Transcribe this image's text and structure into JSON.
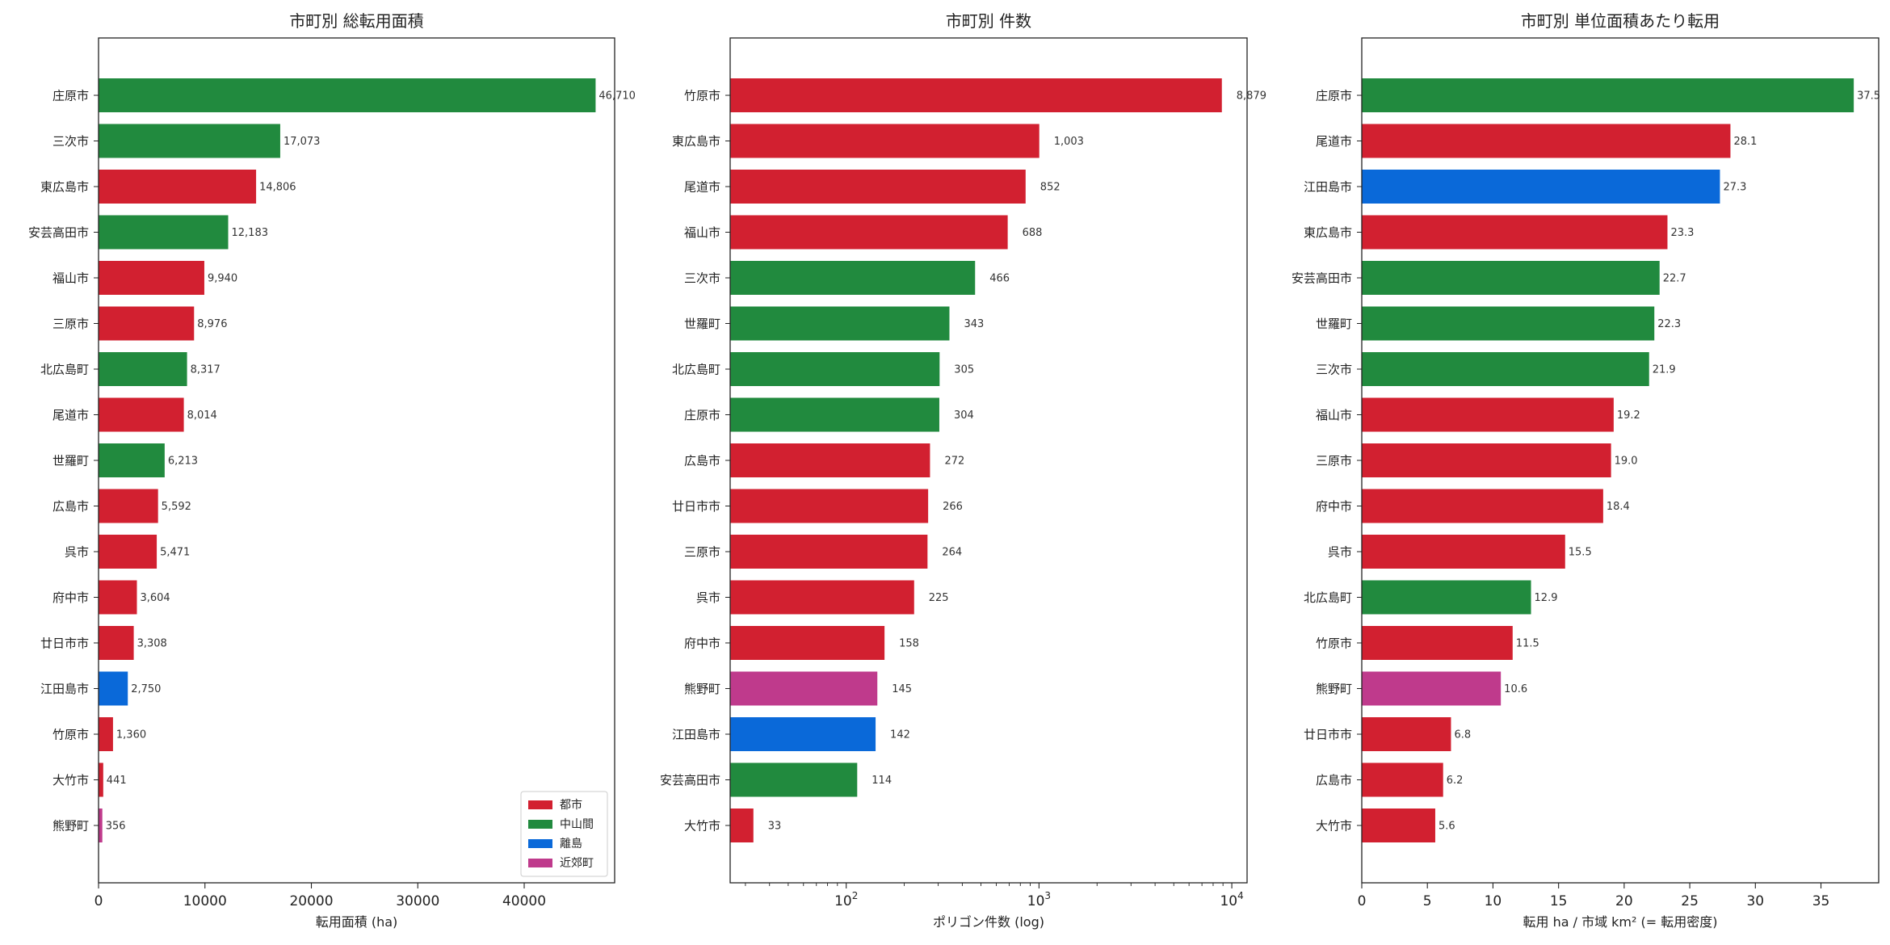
{
  "colors": {
    "都市": "#d22030",
    "中山間": "#218a3e",
    "離島": "#0a69d9",
    "近郊町": "#bf3a8c"
  },
  "chart_data": [
    {
      "type": "bar",
      "orientation": "horizontal",
      "title": "市町別 総転用面積",
      "xlabel": "転用面積 (ha)",
      "xscale": "linear",
      "xlim": [
        0,
        48500
      ],
      "xticks": [
        0,
        10000,
        20000,
        30000,
        40000
      ],
      "tick_labels": [
        "0",
        "10000",
        "20000",
        "30000",
        "40000"
      ],
      "legend": {
        "placement": "lower-right",
        "entries": [
          "都市",
          "中山間",
          "離島",
          "近郊町"
        ]
      },
      "bars": [
        {
          "label": "庄原市",
          "value": 46710,
          "text": "46,710",
          "group": "中山間"
        },
        {
          "label": "三次市",
          "value": 17073,
          "text": "17,073",
          "group": "中山間"
        },
        {
          "label": "東広島市",
          "value": 14806,
          "text": "14,806",
          "group": "都市"
        },
        {
          "label": "安芸高田市",
          "value": 12183,
          "text": "12,183",
          "group": "中山間"
        },
        {
          "label": "福山市",
          "value": 9940,
          "text": "9,940",
          "group": "都市"
        },
        {
          "label": "三原市",
          "value": 8976,
          "text": "8,976",
          "group": "都市"
        },
        {
          "label": "北広島町",
          "value": 8317,
          "text": "8,317",
          "group": "中山間"
        },
        {
          "label": "尾道市",
          "value": 8014,
          "text": "8,014",
          "group": "都市"
        },
        {
          "label": "世羅町",
          "value": 6213,
          "text": "6,213",
          "group": "中山間"
        },
        {
          "label": "広島市",
          "value": 5592,
          "text": "5,592",
          "group": "都市"
        },
        {
          "label": "呉市",
          "value": 5471,
          "text": "5,471",
          "group": "都市"
        },
        {
          "label": "府中市",
          "value": 3604,
          "text": "3,604",
          "group": "都市"
        },
        {
          "label": "廿日市市",
          "value": 3308,
          "text": "3,308",
          "group": "都市"
        },
        {
          "label": "江田島市",
          "value": 2750,
          "text": "2,750",
          "group": "離島"
        },
        {
          "label": "竹原市",
          "value": 1360,
          "text": "1,360",
          "group": "都市"
        },
        {
          "label": "大竹市",
          "value": 441,
          "text": "441",
          "group": "都市"
        },
        {
          "label": "熊野町",
          "value": 356,
          "text": "356",
          "group": "近郊町"
        }
      ]
    },
    {
      "type": "bar",
      "orientation": "horizontal",
      "title": "市町別 件数",
      "xlabel": "ポリゴン件数 (log)",
      "xscale": "log",
      "xlim": [
        25,
        12000
      ],
      "xticks": [
        100,
        1000,
        10000
      ],
      "tick_labels": [
        {
          "base": "10",
          "exp": "2"
        },
        {
          "base": "10",
          "exp": "3"
        },
        {
          "base": "10",
          "exp": "4"
        }
      ],
      "bars": [
        {
          "label": "竹原市",
          "value": 8879,
          "text": "8,879",
          "group": "都市"
        },
        {
          "label": "東広島市",
          "value": 1003,
          "text": "1,003",
          "group": "都市"
        },
        {
          "label": "尾道市",
          "value": 852,
          "text": "852",
          "group": "都市"
        },
        {
          "label": "福山市",
          "value": 688,
          "text": "688",
          "group": "都市"
        },
        {
          "label": "三次市",
          "value": 466,
          "text": "466",
          "group": "中山間"
        },
        {
          "label": "世羅町",
          "value": 343,
          "text": "343",
          "group": "中山間"
        },
        {
          "label": "北広島町",
          "value": 305,
          "text": "305",
          "group": "中山間"
        },
        {
          "label": "庄原市",
          "value": 304,
          "text": "304",
          "group": "中山間"
        },
        {
          "label": "広島市",
          "value": 272,
          "text": "272",
          "group": "都市"
        },
        {
          "label": "廿日市市",
          "value": 266,
          "text": "266",
          "group": "都市"
        },
        {
          "label": "三原市",
          "value": 264,
          "text": "264",
          "group": "都市"
        },
        {
          "label": "呉市",
          "value": 225,
          "text": "225",
          "group": "都市"
        },
        {
          "label": "府中市",
          "value": 158,
          "text": "158",
          "group": "都市"
        },
        {
          "label": "熊野町",
          "value": 145,
          "text": "145",
          "group": "近郊町"
        },
        {
          "label": "江田島市",
          "value": 142,
          "text": "142",
          "group": "離島"
        },
        {
          "label": "安芸高田市",
          "value": 114,
          "text": "114",
          "group": "中山間"
        },
        {
          "label": "大竹市",
          "value": 33,
          "text": "33",
          "group": "都市"
        }
      ]
    },
    {
      "type": "bar",
      "orientation": "horizontal",
      "title": "市町別 単位面積あたり転用",
      "xlabel": "転用 ha / 市域 km² (= 転用密度)",
      "xscale": "linear",
      "xlim": [
        0,
        39.4
      ],
      "xticks": [
        0,
        5,
        10,
        15,
        20,
        25,
        30,
        35
      ],
      "tick_labels": [
        "0",
        "5",
        "10",
        "15",
        "20",
        "25",
        "30",
        "35"
      ],
      "bars": [
        {
          "label": "庄原市",
          "value": 37.5,
          "text": "37.5",
          "group": "中山間"
        },
        {
          "label": "尾道市",
          "value": 28.1,
          "text": "28.1",
          "group": "都市"
        },
        {
          "label": "江田島市",
          "value": 27.3,
          "text": "27.3",
          "group": "離島"
        },
        {
          "label": "東広島市",
          "value": 23.3,
          "text": "23.3",
          "group": "都市"
        },
        {
          "label": "安芸高田市",
          "value": 22.7,
          "text": "22.7",
          "group": "中山間"
        },
        {
          "label": "世羅町",
          "value": 22.3,
          "text": "22.3",
          "group": "中山間"
        },
        {
          "label": "三次市",
          "value": 21.9,
          "text": "21.9",
          "group": "中山間"
        },
        {
          "label": "福山市",
          "value": 19.2,
          "text": "19.2",
          "group": "都市"
        },
        {
          "label": "三原市",
          "value": 19.0,
          "text": "19.0",
          "group": "都市"
        },
        {
          "label": "府中市",
          "value": 18.4,
          "text": "18.4",
          "group": "都市"
        },
        {
          "label": "呉市",
          "value": 15.5,
          "text": "15.5",
          "group": "都市"
        },
        {
          "label": "北広島町",
          "value": 12.9,
          "text": "12.9",
          "group": "中山間"
        },
        {
          "label": "竹原市",
          "value": 11.5,
          "text": "11.5",
          "group": "都市"
        },
        {
          "label": "熊野町",
          "value": 10.6,
          "text": "10.6",
          "group": "近郊町"
        },
        {
          "label": "廿日市市",
          "value": 6.8,
          "text": "6.8",
          "group": "都市"
        },
        {
          "label": "広島市",
          "value": 6.2,
          "text": "6.2",
          "group": "都市"
        },
        {
          "label": "大竹市",
          "value": 5.6,
          "text": "5.6",
          "group": "都市"
        }
      ]
    }
  ]
}
